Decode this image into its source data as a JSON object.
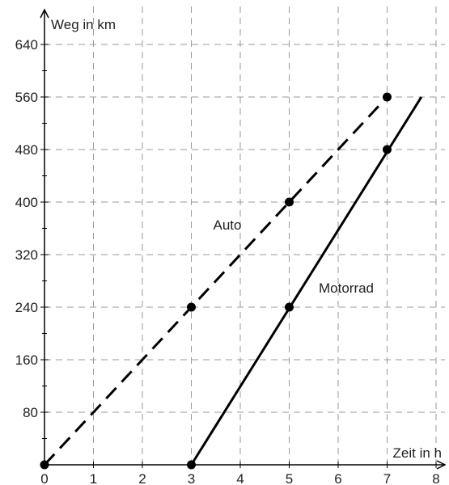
{
  "chart_data": {
    "type": "line",
    "xlabel": "Zeit in h",
    "ylabel": "Weg in km",
    "xlim": [
      0,
      8
    ],
    "ylim": [
      0,
      640
    ],
    "x_ticks": [
      0,
      1,
      2,
      3,
      4,
      5,
      6,
      7,
      8
    ],
    "y_ticks": [
      80,
      160,
      240,
      320,
      400,
      480,
      560,
      640
    ],
    "grid": true,
    "grid_style": "dashed",
    "series": [
      {
        "name": "Auto",
        "line_style": "dashed",
        "line": [
          [
            0,
            0
          ],
          [
            7,
            560
          ]
        ],
        "points": [
          [
            0,
            0
          ],
          [
            3,
            240
          ],
          [
            5,
            400
          ],
          [
            7,
            560
          ]
        ]
      },
      {
        "name": "Motorrad",
        "line_style": "solid",
        "line": [
          [
            3,
            0
          ],
          [
            7.7,
            560
          ]
        ],
        "points": [
          [
            3,
            0
          ],
          [
            5,
            240
          ],
          [
            7,
            480
          ]
        ]
      }
    ],
    "colors": {
      "lines": "#000000",
      "grid": "#9a9a9a",
      "axes": "#000000"
    }
  }
}
